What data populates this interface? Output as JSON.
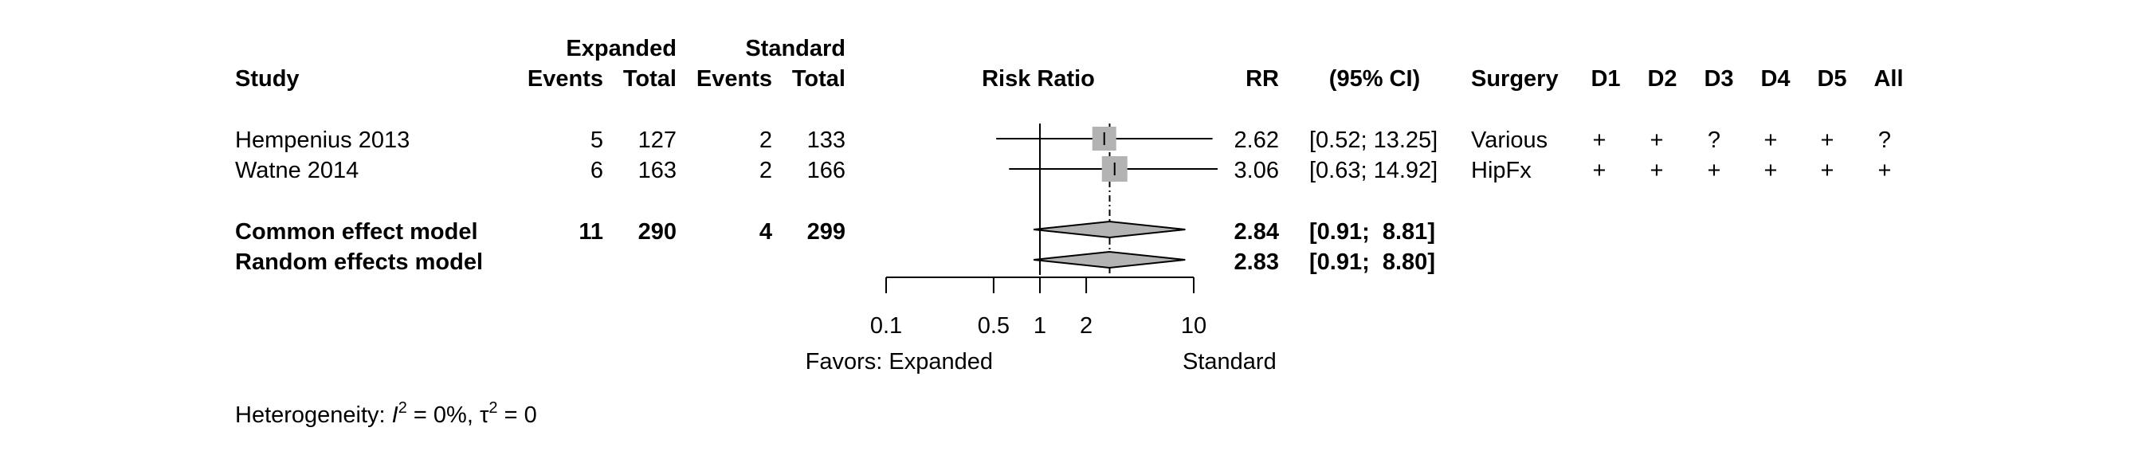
{
  "header": {
    "study": "Study",
    "group1": "Expanded",
    "group2": "Standard",
    "events": "Events",
    "total": "Total",
    "effect": "Risk Ratio",
    "rr": "RR",
    "ci": "(95% CI)",
    "surgery": "Surgery",
    "domains": [
      "D1",
      "D2",
      "D3",
      "D4",
      "D5",
      "All"
    ]
  },
  "chart_data": {
    "type": "forest",
    "xscale": "log",
    "xlim": [
      0.1,
      10
    ],
    "x_ticks": [
      "0.1",
      "0.5",
      "1",
      "2",
      "10"
    ],
    "x_tick_values": [
      0.1,
      0.5,
      1,
      2,
      10
    ],
    "null_value": 1,
    "favors_left": "Favors: Expanded",
    "favors_right": "Standard",
    "studies": [
      {
        "name": "Hempenius 2013",
        "events1": "5",
        "total1": "127",
        "events2": "2",
        "total2": "133",
        "rr": 2.62,
        "lower": 0.52,
        "upper": 13.25,
        "rr_text": "2.62",
        "ci_text": "[0.52; 13.25]",
        "surgery": "Various",
        "rob": [
          "+",
          "+",
          "?",
          "+",
          "+",
          "?"
        ]
      },
      {
        "name": "Watne 2014",
        "events1": "6",
        "total1": "163",
        "events2": "2",
        "total2": "166",
        "rr": 3.06,
        "lower": 0.63,
        "upper": 14.92,
        "rr_text": "3.06",
        "ci_text": "[0.63; 14.92]",
        "surgery": "HipFx",
        "rob": [
          "+",
          "+",
          "+",
          "+",
          "+",
          "+"
        ]
      }
    ],
    "pooled": [
      {
        "name": "Common effect model",
        "events1": "11",
        "total1": "290",
        "events2": "4",
        "total2": "299",
        "rr": 2.84,
        "lower": 0.91,
        "upper": 8.81,
        "rr_text": "2.84",
        "ci_text": "[0.91;  8.81]"
      },
      {
        "name": "Random effects model",
        "rr": 2.83,
        "lower": 0.91,
        "upper": 8.8,
        "rr_text": "2.83",
        "ci_text": "[0.91;  8.80]"
      }
    ],
    "heterogeneity": {
      "prefix": "Heterogeneity: ",
      "i2_symbol": "I",
      "i2_sup": "2",
      "i2_value": " = 0%, ",
      "tau_symbol": "τ",
      "tau_sup": "2",
      "tau_value": " = 0"
    }
  }
}
